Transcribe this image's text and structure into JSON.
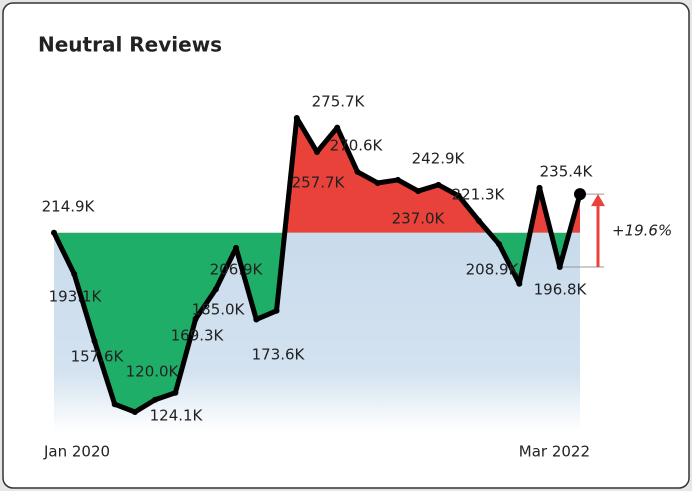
{
  "chart_data": {
    "type": "line",
    "title": "Neutral Reviews",
    "categories": [
      "Jan 2020",
      null,
      null,
      null,
      null,
      null,
      null,
      null,
      null,
      null,
      null,
      null,
      null,
      null,
      null,
      null,
      null,
      null,
      null,
      null,
      null,
      null,
      null,
      null,
      null,
      null,
      "Mar 2022"
    ],
    "values": [
      214.9,
      193.1,
      157.6,
      124.1,
      120.0,
      126.5,
      130.2,
      169.3,
      185.0,
      206.9,
      169.0,
      173.6,
      275.7,
      257.7,
      270.6,
      247.2,
      241.3,
      242.9,
      237.0,
      240.3,
      234.5,
      221.3,
      208.9,
      187.9,
      238.7,
      196.8,
      235.4
    ],
    "value_labels": [
      "214.9K",
      "193.1K",
      "157.6K",
      "124.1K",
      "120.0K",
      null,
      null,
      "169.3K",
      "185.0K",
      "206.9K",
      null,
      "173.6K",
      "275.7K",
      "257.7K",
      "270.6K",
      null,
      null,
      "242.9K",
      "237.0K",
      null,
      null,
      "221.3K",
      "208.9K",
      null,
      null,
      "196.8K",
      "235.4K"
    ],
    "color": "#000000",
    "above_color": "#e8423b",
    "below_color": "#1fae67",
    "band_color": "#c9dbec",
    "annotation": "+19.6%",
    "annotation_color": "#e8423b"
  }
}
